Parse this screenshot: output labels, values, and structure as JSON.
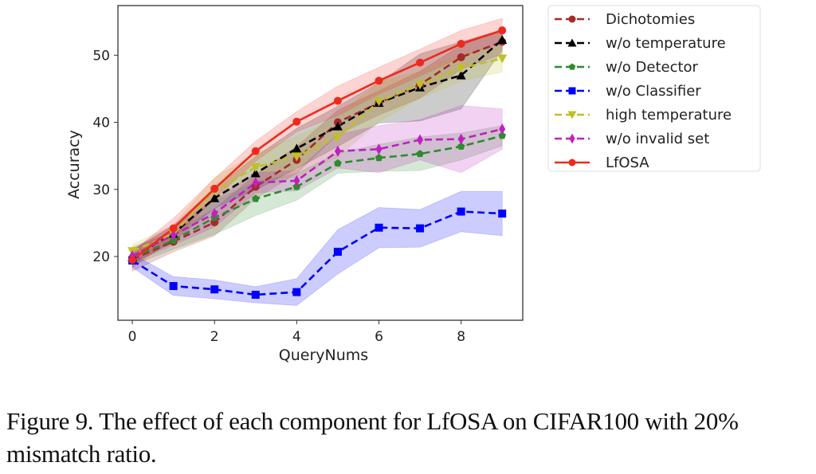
{
  "caption": "Figure 9. The effect of each component for LfOSA on CIFAR100 with 20% mismatch ratio.",
  "chart_data": {
    "type": "line",
    "title": "",
    "xlabel": "QueryNums",
    "ylabel": "Accuracy",
    "xlim": [
      -0.35,
      9.5
    ],
    "ylim": [
      10.5,
      57.4
    ],
    "xticks": [
      0,
      2,
      4,
      6,
      8
    ],
    "yticks": [
      20,
      30,
      40,
      50
    ],
    "grid": false,
    "legend_position": "outside-right-top",
    "x": [
      0,
      1,
      2,
      3,
      4,
      5,
      6,
      7,
      8,
      9
    ],
    "series": [
      {
        "name": "Dichotomies",
        "color": "#a52a2a",
        "style": "dashed",
        "marker": "circle",
        "values": [
          19.6,
          22.2,
          25.1,
          30.4,
          34.4,
          40.0,
          42.9,
          45.6,
          49.7,
          52.0
        ],
        "band": [
          1.8,
          1.5,
          2.0,
          1.8,
          2.0,
          1.8,
          1.8,
          2.0,
          1.8,
          1.8
        ]
      },
      {
        "name": "w/o temperature",
        "color": "#000000",
        "style": "dashed",
        "marker": "triangle-up",
        "values": [
          19.9,
          23.4,
          28.7,
          32.4,
          36.1,
          39.4,
          42.9,
          45.2,
          47.0,
          52.3
        ],
        "band": [
          1.0,
          1.2,
          1.5,
          2.5,
          3.0,
          3.0,
          3.0,
          5.0,
          5.0,
          1.5
        ]
      },
      {
        "name": "w/o Detector",
        "color": "#2e8b2e",
        "style": "dashed",
        "marker": "pentagon",
        "values": [
          19.9,
          22.4,
          25.8,
          28.6,
          30.4,
          33.9,
          34.7,
          35.3,
          36.4,
          38.0
        ],
        "band": [
          1.2,
          1.3,
          2.5,
          2.5,
          2.0,
          1.5,
          2.0,
          2.5,
          2.0,
          1.5
        ]
      },
      {
        "name": "w/o Classifier",
        "color": "#0000ff",
        "style": "dashed",
        "marker": "square",
        "values": [
          19.4,
          15.6,
          15.1,
          14.3,
          14.7,
          20.7,
          24.3,
          24.2,
          26.7,
          26.4
        ],
        "band": [
          1.0,
          1.4,
          1.4,
          1.2,
          2.0,
          3.3,
          3.0,
          2.8,
          3.0,
          3.3
        ]
      },
      {
        "name": "high temperature",
        "color": "#bfbf2a",
        "style": "dashed",
        "marker": "triangle-down",
        "values": [
          20.8,
          23.4,
          29.8,
          33.3,
          34.9,
          37.8,
          43.1,
          45.6,
          48.1,
          49.5
        ],
        "band": [
          1.0,
          1.3,
          2.0,
          2.0,
          3.0,
          3.0,
          3.0,
          2.0,
          2.0,
          2.0
        ]
      },
      {
        "name": "w/o invalid set",
        "color": "#c020c0",
        "style": "dashed",
        "marker": "diamond",
        "values": [
          20.1,
          23.2,
          26.4,
          31.0,
          31.3,
          35.7,
          36.0,
          37.4,
          37.5,
          39.0
        ],
        "band": [
          1.0,
          1.5,
          2.0,
          1.5,
          1.5,
          2.5,
          3.5,
          3.0,
          5.0,
          3.0
        ]
      },
      {
        "name": "LfOSA",
        "color": "#ee2a1e",
        "style": "solid",
        "marker": "circle",
        "values": [
          19.5,
          24.2,
          30.1,
          35.7,
          40.1,
          43.2,
          46.2,
          48.9,
          51.7,
          53.7
        ],
        "band": [
          1.2,
          1.5,
          1.5,
          1.5,
          1.5,
          2.2,
          2.0,
          2.0,
          2.0,
          1.8
        ]
      }
    ]
  }
}
